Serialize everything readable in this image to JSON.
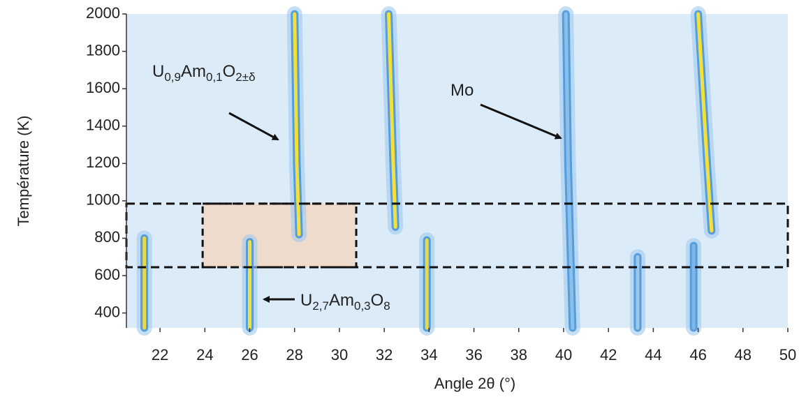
{
  "chart_data": {
    "type": "heatmap",
    "xlabel": "Angle 2θ (°)",
    "ylabel": "Température (K)",
    "xlim": [
      20.5,
      50
    ],
    "xticks": [
      22,
      24,
      26,
      28,
      30,
      32,
      34,
      36,
      38,
      40,
      42,
      44,
      46,
      48,
      50
    ],
    "ylim": [
      320,
      2000
    ],
    "yticks": [
      400,
      600,
      800,
      1000,
      1200,
      1400,
      1600,
      1800,
      2000
    ],
    "background": "#dcebf8",
    "series": [
      {
        "color": "#f4e03a",
        "x": [
          28.0,
          28.05,
          28.1,
          28.2
        ],
        "y": [
          2000,
          1600,
          1200,
          820
        ]
      },
      {
        "color": "#f4e03a",
        "x": [
          32.2,
          32.3,
          32.4,
          32.5
        ],
        "y": [
          2000,
          1600,
          1200,
          860
        ]
      },
      {
        "color": "#f4e03a",
        "x": [
          46.0,
          46.2,
          46.4,
          46.6
        ],
        "y": [
          2000,
          1600,
          1200,
          840
        ]
      },
      {
        "color": "#e8d94a",
        "x": [
          21.3,
          21.3
        ],
        "y": [
          320,
          800
        ]
      },
      {
        "color": "#f4e03a",
        "x": [
          26.0,
          26.0
        ],
        "y": [
          320,
          780
        ]
      },
      {
        "color": "#e8d94a",
        "x": [
          33.9,
          33.9
        ],
        "y": [
          320,
          790
        ]
      },
      {
        "color": "#8cc0ea",
        "x": [
          40.1,
          40.2,
          40.4
        ],
        "y": [
          2000,
          1200,
          320
        ]
      },
      {
        "color": "#9cc8ec",
        "x": [
          43.3,
          43.3
        ],
        "y": [
          320,
          700
        ]
      },
      {
        "color": "#7eb6e6",
        "x": [
          45.8,
          45.8
        ],
        "y": [
          320,
          760
        ]
      }
    ],
    "regions": [
      {
        "xlim": [
          20.5,
          50
        ],
        "ylim": [
          645,
          985
        ],
        "fill": "none"
      },
      {
        "xlim": [
          23.9,
          30.75
        ],
        "ylim": [
          645,
          985
        ],
        "fill": "#f2d8c4"
      }
    ],
    "annotations": [
      {
        "parts": [
          "U",
          "0,9",
          "Am",
          "0,1",
          "O",
          "2±δ"
        ]
      },
      {
        "parts": [
          "Mo"
        ]
      },
      {
        "parts": [
          "U",
          "2,7",
          "Am",
          "0,3",
          "O",
          "8"
        ]
      }
    ]
  }
}
